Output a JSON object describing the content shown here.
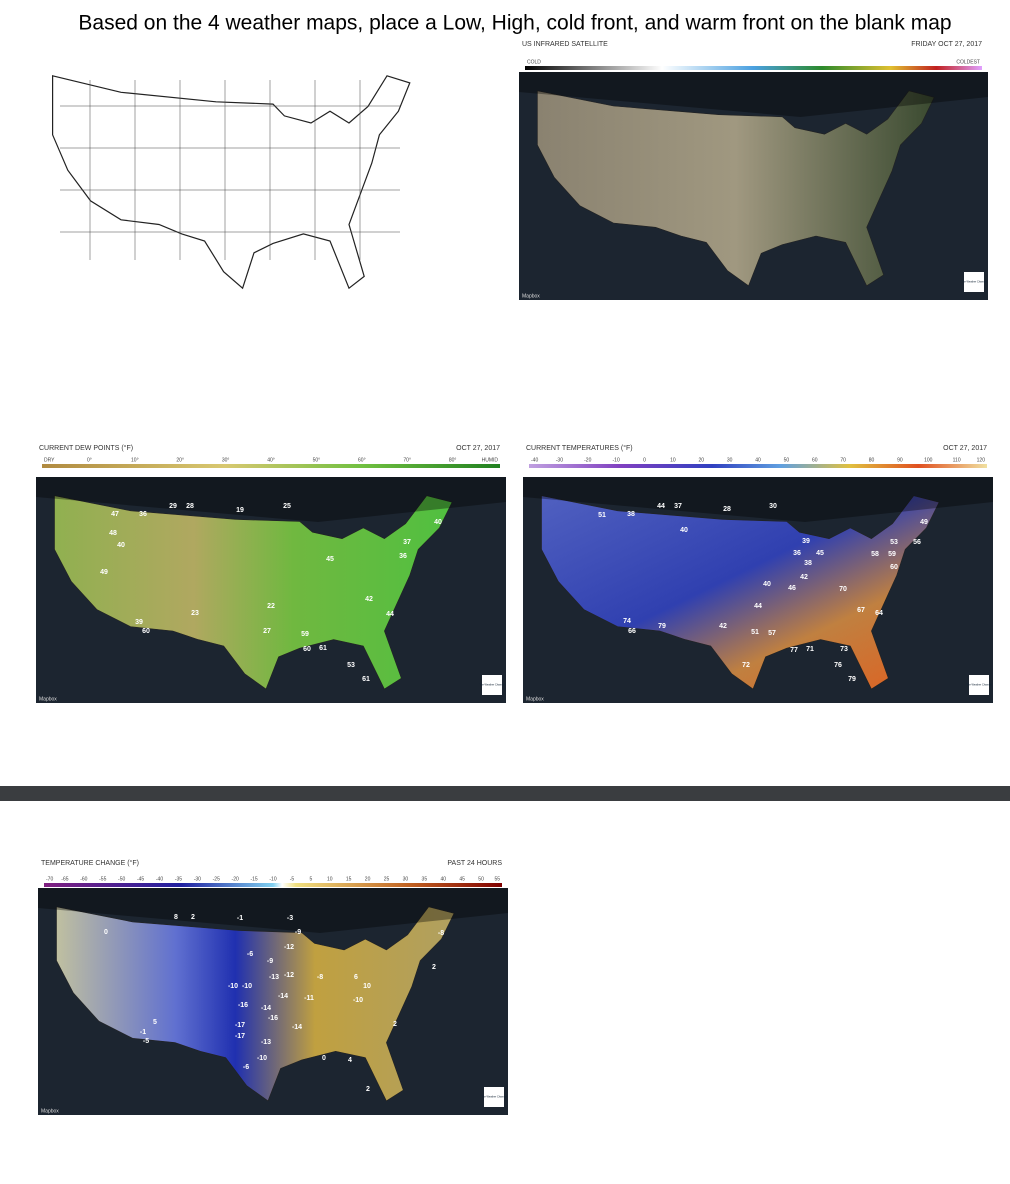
{
  "instruction": "Based on the 4 weather maps, place a Low, High, cold front, and warm front on the blank map",
  "satellite": {
    "title": "US INFRARED SATELLITE",
    "date": "FRIDAY OCT 27, 2017",
    "scale_labels": [
      "COLD",
      "COLDEST"
    ],
    "credit": "Mapbox",
    "logo": "The Weather Channel"
  },
  "dew_points": {
    "title": "CURRENT DEW POINTS (°F)",
    "date": "OCT 27, 2017",
    "scale_labels": [
      "DRY",
      "0°",
      "10°",
      "20°",
      "30°",
      "40°",
      "50°",
      "60°",
      "70°",
      "80°",
      "HUMID"
    ],
    "credit": "Mapbox",
    "logo": "The Weather Channel",
    "readings": [
      47,
      36,
      29,
      28,
      19,
      25,
      40,
      48,
      40,
      49,
      37,
      36,
      45,
      53,
      61,
      60,
      61,
      59,
      44,
      42,
      27,
      22,
      23,
      60,
      39
    ]
  },
  "temperatures": {
    "title": "CURRENT TEMPERATURES (°F)",
    "date": "OCT 27, 2017",
    "scale_labels": [
      -40,
      -30,
      -20,
      -10,
      0,
      10,
      20,
      30,
      40,
      50,
      60,
      70,
      80,
      90,
      100,
      110,
      120
    ],
    "credit": "Mapbox",
    "logo": "The Weather Channel",
    "readings": [
      44,
      37,
      28,
      30,
      51,
      38,
      49,
      53,
      56,
      40,
      39,
      36,
      45,
      38,
      42,
      58,
      59,
      60,
      66,
      74,
      79,
      72,
      76,
      79,
      71,
      77,
      73,
      64,
      67,
      70,
      46,
      40,
      42,
      44,
      57,
      51
    ]
  },
  "temperature_change": {
    "title": "TEMPERATURE CHANGE (°F)",
    "period": "PAST 24 HOURS",
    "scale_labels": [
      -70,
      -65,
      -60,
      -55,
      -50,
      -45,
      -40,
      -35,
      -30,
      -25,
      -20,
      -15,
      -10,
      -5,
      5,
      10,
      15,
      20,
      25,
      30,
      35,
      40,
      45,
      50,
      55
    ],
    "credit": "Mapbox",
    "logo": "The Weather Channel",
    "readings": [
      0,
      8,
      2,
      -1,
      -3,
      -9,
      -12,
      -6,
      -9,
      -13,
      -12,
      -10,
      -10,
      -14,
      -11,
      -16,
      -14,
      -16,
      -17,
      -17,
      -14,
      -13,
      -10,
      -6,
      -8,
      6,
      10,
      -10,
      2,
      5,
      -5,
      -1,
      4,
      2,
      -8,
      2,
      0
    ]
  }
}
